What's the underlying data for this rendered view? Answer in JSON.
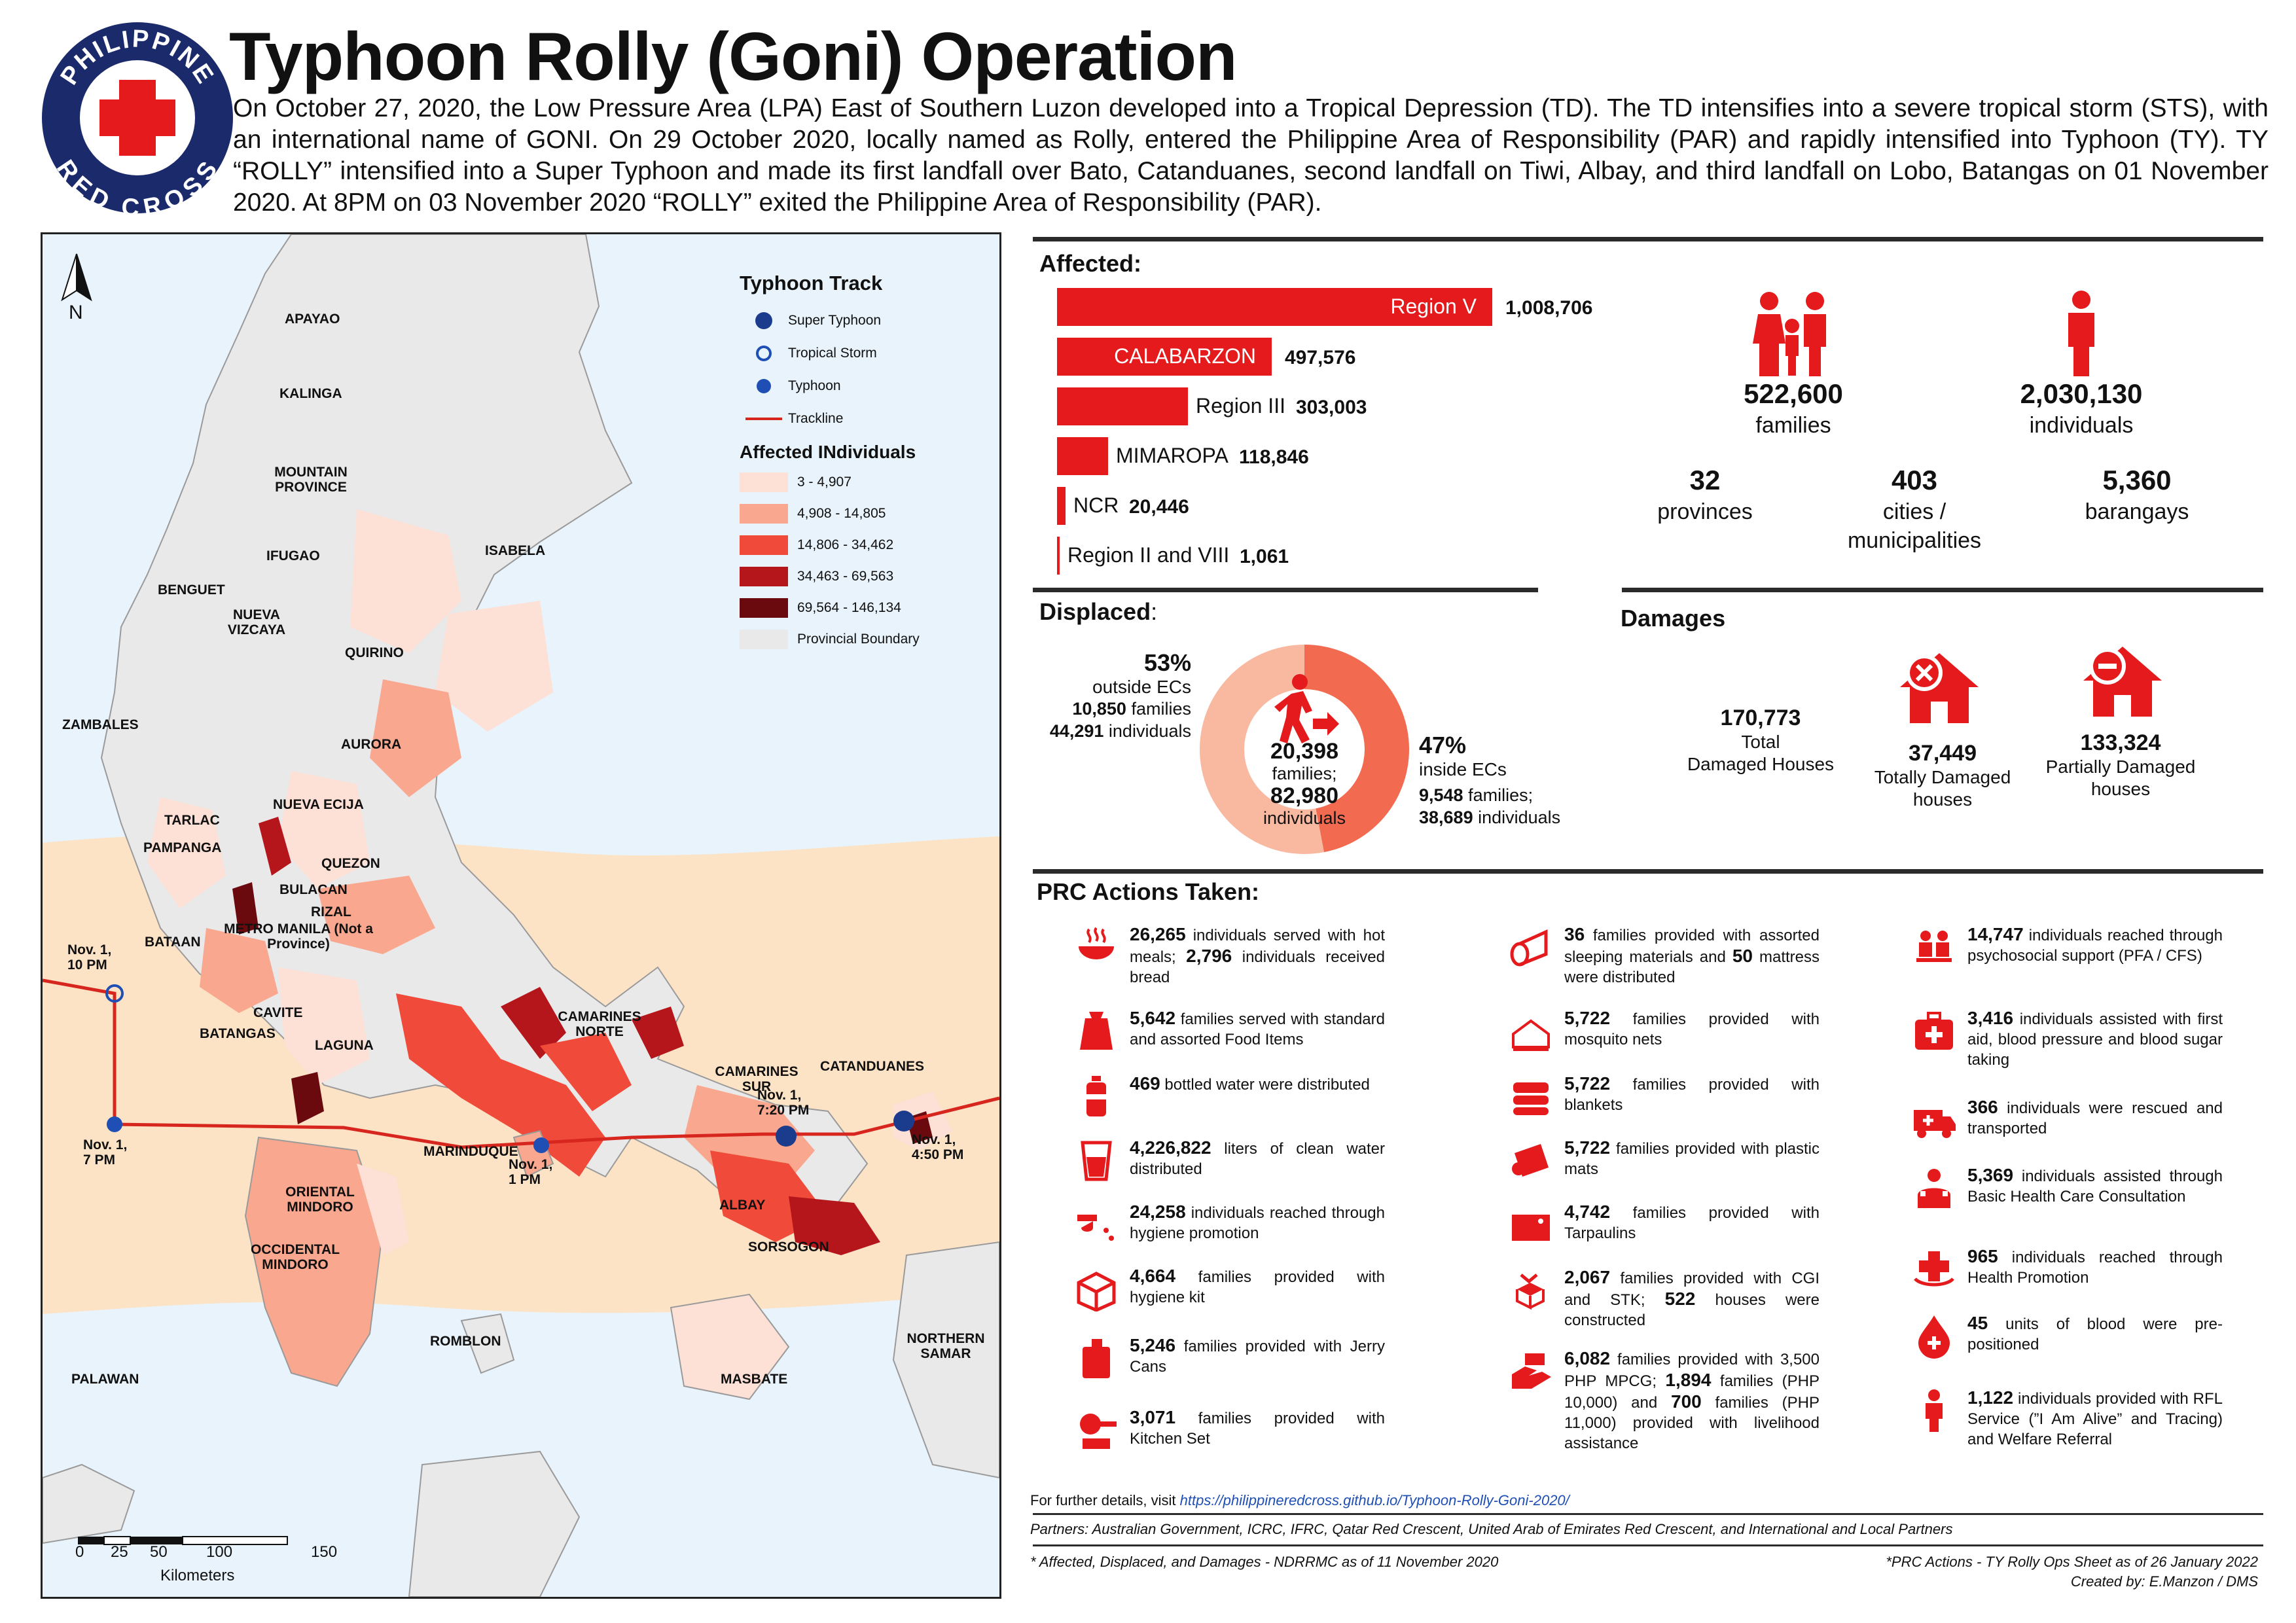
{
  "header": {
    "title": "Typhoon Rolly (Goni) Operation",
    "intro": "On October 27, 2020, the Low Pressure Area (LPA) East of Southern Luzon developed into a Tropical Depression (TD). The TD intensifies into a severe tropical storm (STS), with an international name of GONI. On 29 October 2020, locally named as Rolly, entered the Philippine Area of Responsibility (PAR) and rapidly intensified into Typhoon (TY). TY “ROLLY” intensified into a Super Typhoon and made its first landfall over Bato, Catanduanes, second landfall on Tiwi, Albay, and third landfall on Lobo, Batangas on 01 November 2020. At 8PM on 03 November 2020 “ROLLY” exited the Philippine Area of Responsibility (PAR).",
    "logo_top_text": "PHILIPPINE",
    "logo_bottom_text": "RED CROSS"
  },
  "map": {
    "north_label": "N",
    "provinces": {
      "apayao": "APAYAO",
      "kalinga": "KALINGA",
      "mountain_province": "MOUNTAIN PROVINCE",
      "ifugao": "IFUGAO",
      "isabela": "ISABELA",
      "benguet": "BENGUET",
      "nueva_vizcaya": "NUEVA VIZCAYA",
      "quirino": "QUIRINO",
      "zambales": "ZAMBALES",
      "aurora": "AURORA",
      "tarlac": "TARLAC",
      "nueva_ecija": "NUEVA ECIJA",
      "pampanga": "PAMPANGA",
      "quezon": "QUEZON",
      "bulacan": "BULACAN",
      "rizal": "RIZAL",
      "metro_manila": "METRO MANILA (Not a Province)",
      "bataan": "BATAAN",
      "cavite": "CAVITE",
      "batangas": "BATANGAS",
      "laguna": "LAGUNA",
      "camarines_norte": "CAMARINES NORTE",
      "camarines_sur": "CAMARINES SUR",
      "catanduanes": "CATANDUANES",
      "marinduque": "MARINDUQUE",
      "oriental_mindoro": "ORIENTAL MINDORO",
      "occidental_mindoro": "OCCIDENTAL MINDORO",
      "albay": "ALBAY",
      "sorsogon": "SORSOGON",
      "romblon": "ROMBLON",
      "northern_samar": "NORTHERN SAMAR",
      "masbate": "MASBATE",
      "palawan": "PALAWAN"
    },
    "track_events": {
      "nov1_10pm": "Nov. 1, 10 PM",
      "nov1_7pm": "Nov. 1, 7 PM",
      "nov1_1pm": "Nov. 1, 1 PM",
      "nov1_720pm": "Nov. 1, 7:20 PM",
      "nov1_450pm": "Nov. 1, 4:50 PM"
    },
    "scale": {
      "ticks": [
        "0",
        "25",
        "50",
        "100",
        "150"
      ],
      "unit": "Kilometers"
    },
    "legend": {
      "title": "Typhoon Track",
      "super_typhoon": "Super Typhoon",
      "tropical_storm": "Tropical Storm",
      "typhoon": "Typhoon",
      "trackline": "Trackline",
      "affected_title": "Affected INdividuals",
      "classes": [
        {
          "label": "3 - 4,907",
          "color": "#fde0d6"
        },
        {
          "label": "4,908 - 14,805",
          "color": "#f9a78e"
        },
        {
          "label": "14,806 - 34,462",
          "color": "#ef4a3a"
        },
        {
          "label": "34,463 - 69,563",
          "color": "#b5161c"
        },
        {
          "label": "69,564 - 146,134",
          "color": "#6b0a0e"
        }
      ],
      "boundary": {
        "label": "Provincial Boundary",
        "color": "#e9e9e9"
      }
    }
  },
  "affected": {
    "heading": "Affected:",
    "regions": [
      {
        "name": "Region V",
        "value": "1,008,706",
        "raw": 1008706
      },
      {
        "name": "CALABARZON",
        "value": "497,576",
        "raw": 497576
      },
      {
        "name": "Region III",
        "value": "303,003",
        "raw": 303003
      },
      {
        "name": "MIMAROPA",
        "value": "118,846",
        "raw": 118846
      },
      {
        "name": "NCR",
        "value": "20,446",
        "raw": 20446
      },
      {
        "name": "Region II and VIII",
        "value": "1,061",
        "raw": 1061
      }
    ],
    "families": {
      "value": "522,600",
      "label": "families"
    },
    "individuals": {
      "value": "2,030,130",
      "label": "individuals"
    },
    "provinces": {
      "value": "32",
      "label": "provinces"
    },
    "cities": {
      "value": "403",
      "label": "cities / municipalities"
    },
    "barangays": {
      "value": "5,360",
      "label": "barangays"
    }
  },
  "displaced": {
    "heading": "Displaced",
    "heading_colon": ":",
    "outside": {
      "pct": "53%",
      "label": "outside ECs",
      "families": "10,850",
      "families_label": "families",
      "individuals": "44,291",
      "individuals_label": "individuals",
      "share": 0.53
    },
    "inside": {
      "pct": "47%",
      "label": "inside ECs",
      "families": "9,548",
      "families_label": "families;",
      "individuals": "38,689",
      "individuals_label": "individuals",
      "share": 0.47
    },
    "center": {
      "families": "20,398",
      "families_label": "families;",
      "individuals": "82,980",
      "individuals_label": "individuals"
    }
  },
  "damages": {
    "heading": "Damages",
    "total": {
      "value": "170,773",
      "label1": "Total",
      "label2": "Damaged Houses"
    },
    "totally": {
      "value": "37,449",
      "label": "Totally Damaged houses"
    },
    "partially": {
      "value": "133,324",
      "label": "Partially Damaged houses"
    }
  },
  "actions": {
    "heading": "PRC Actions Taken:",
    "col1": [
      {
        "icon": "hot-meal-icon",
        "num": "26,265",
        "text": " individuals served with hot meals; ",
        "num2": "2,796",
        "text2": " individuals received bread"
      },
      {
        "icon": "food-bag-icon",
        "num": "5,642",
        "text": " families served with standard and assorted Food Items"
      },
      {
        "icon": "water-bottle-icon",
        "num": "469",
        "text": " bottled water were distributed"
      },
      {
        "icon": "water-glass-icon",
        "num": "4,226,822",
        "text": " liters of clean water distributed"
      },
      {
        "icon": "handwash-icon",
        "num": "24,258",
        "text": " individuals reached through hygiene promotion"
      },
      {
        "icon": "hygiene-kit-icon",
        "num": "4,664",
        "text": " families provided with hygiene kit"
      },
      {
        "icon": "jerry-can-icon",
        "num": "5,246",
        "text": " families provided with Jerry Cans"
      },
      {
        "icon": "kitchen-set-icon",
        "num": "3,071",
        "text": " families provided with Kitchen Set"
      }
    ],
    "col2": [
      {
        "icon": "mattress-icon",
        "num": "36",
        "text": " families provided with assorted sleeping materials and ",
        "num2": "50",
        "text2": " mattress were distributed"
      },
      {
        "icon": "mosquito-net-icon",
        "num": "5,722",
        "text": " families provided with mosquito nets"
      },
      {
        "icon": "blanket-icon",
        "num": "5,722",
        "text": " families provided with blankets"
      },
      {
        "icon": "plastic-mat-icon",
        "num": "5,722",
        "text": " families provided with plastic mats"
      },
      {
        "icon": "tarpaulin-icon",
        "num": "4,742",
        "text": " families provided with Tarpaulins"
      },
      {
        "icon": "shelter-kit-icon",
        "num": "2,067",
        "text": " families provided with CGI and STK; ",
        "num2": "522",
        "text2": " houses were constructed"
      },
      {
        "icon": "cash-icon",
        "num": "6,082",
        "text": " families provided with 3,500 PHP MPCG; ",
        "num2": "1,894",
        "text2": " families (PHP 10,000) and ",
        "num3": "700",
        "text3": " families (PHP 11,000) provided with livelihood assistance"
      }
    ],
    "col3": [
      {
        "icon": "psychosocial-icon",
        "num": "14,747",
        "text": " individuals reached through psychosocial support (PFA / CFS)"
      },
      {
        "icon": "first-aid-icon",
        "num": "3,416",
        "text": " individuals assisted with first aid, blood pressure and blood sugar taking"
      },
      {
        "icon": "ambulance-icon",
        "num": "366",
        "text": " individuals were rescued and transported"
      },
      {
        "icon": "health-care-icon",
        "num": "5,369",
        "text": " individuals assisted through Basic Health Care Consultation"
      },
      {
        "icon": "health-promotion-icon",
        "num": "965",
        "text": " individuals reached through Health Promotion"
      },
      {
        "icon": "blood-drop-icon",
        "num": "45",
        "text": " units of blood were pre-positioned"
      },
      {
        "icon": "person-icon",
        "num": "1,122",
        "text": " individuals provided with RFL Service (”I Am Alive” and Tracing) and Welfare Referral"
      }
    ]
  },
  "footer": {
    "details_prefix": "For further details, visit ",
    "details_link": "https://philippineredcross.github.io/Typhoon-Rolly-Goni-2020/",
    "partners": "Partners: Australian Government, ICRC, IFRC, Qatar Red Crescent, United Arab of Emirates Red Crescent, and International and Local Partners",
    "source": "* Affected, Displaced, and Damages - NDRRMC as of 11 November 2020",
    "ops_sheet": "*PRC Actions - TY Rolly Ops Sheet as of 26 January 2022",
    "created_by": "Created by: E.Manzon / DMS"
  },
  "colors": {
    "red": "#e41a1c",
    "dark_red": "#b5161c",
    "navy": "#1b2a6b",
    "donut_outside": "#f9b8a0",
    "donut_inside": "#f26b50"
  }
}
